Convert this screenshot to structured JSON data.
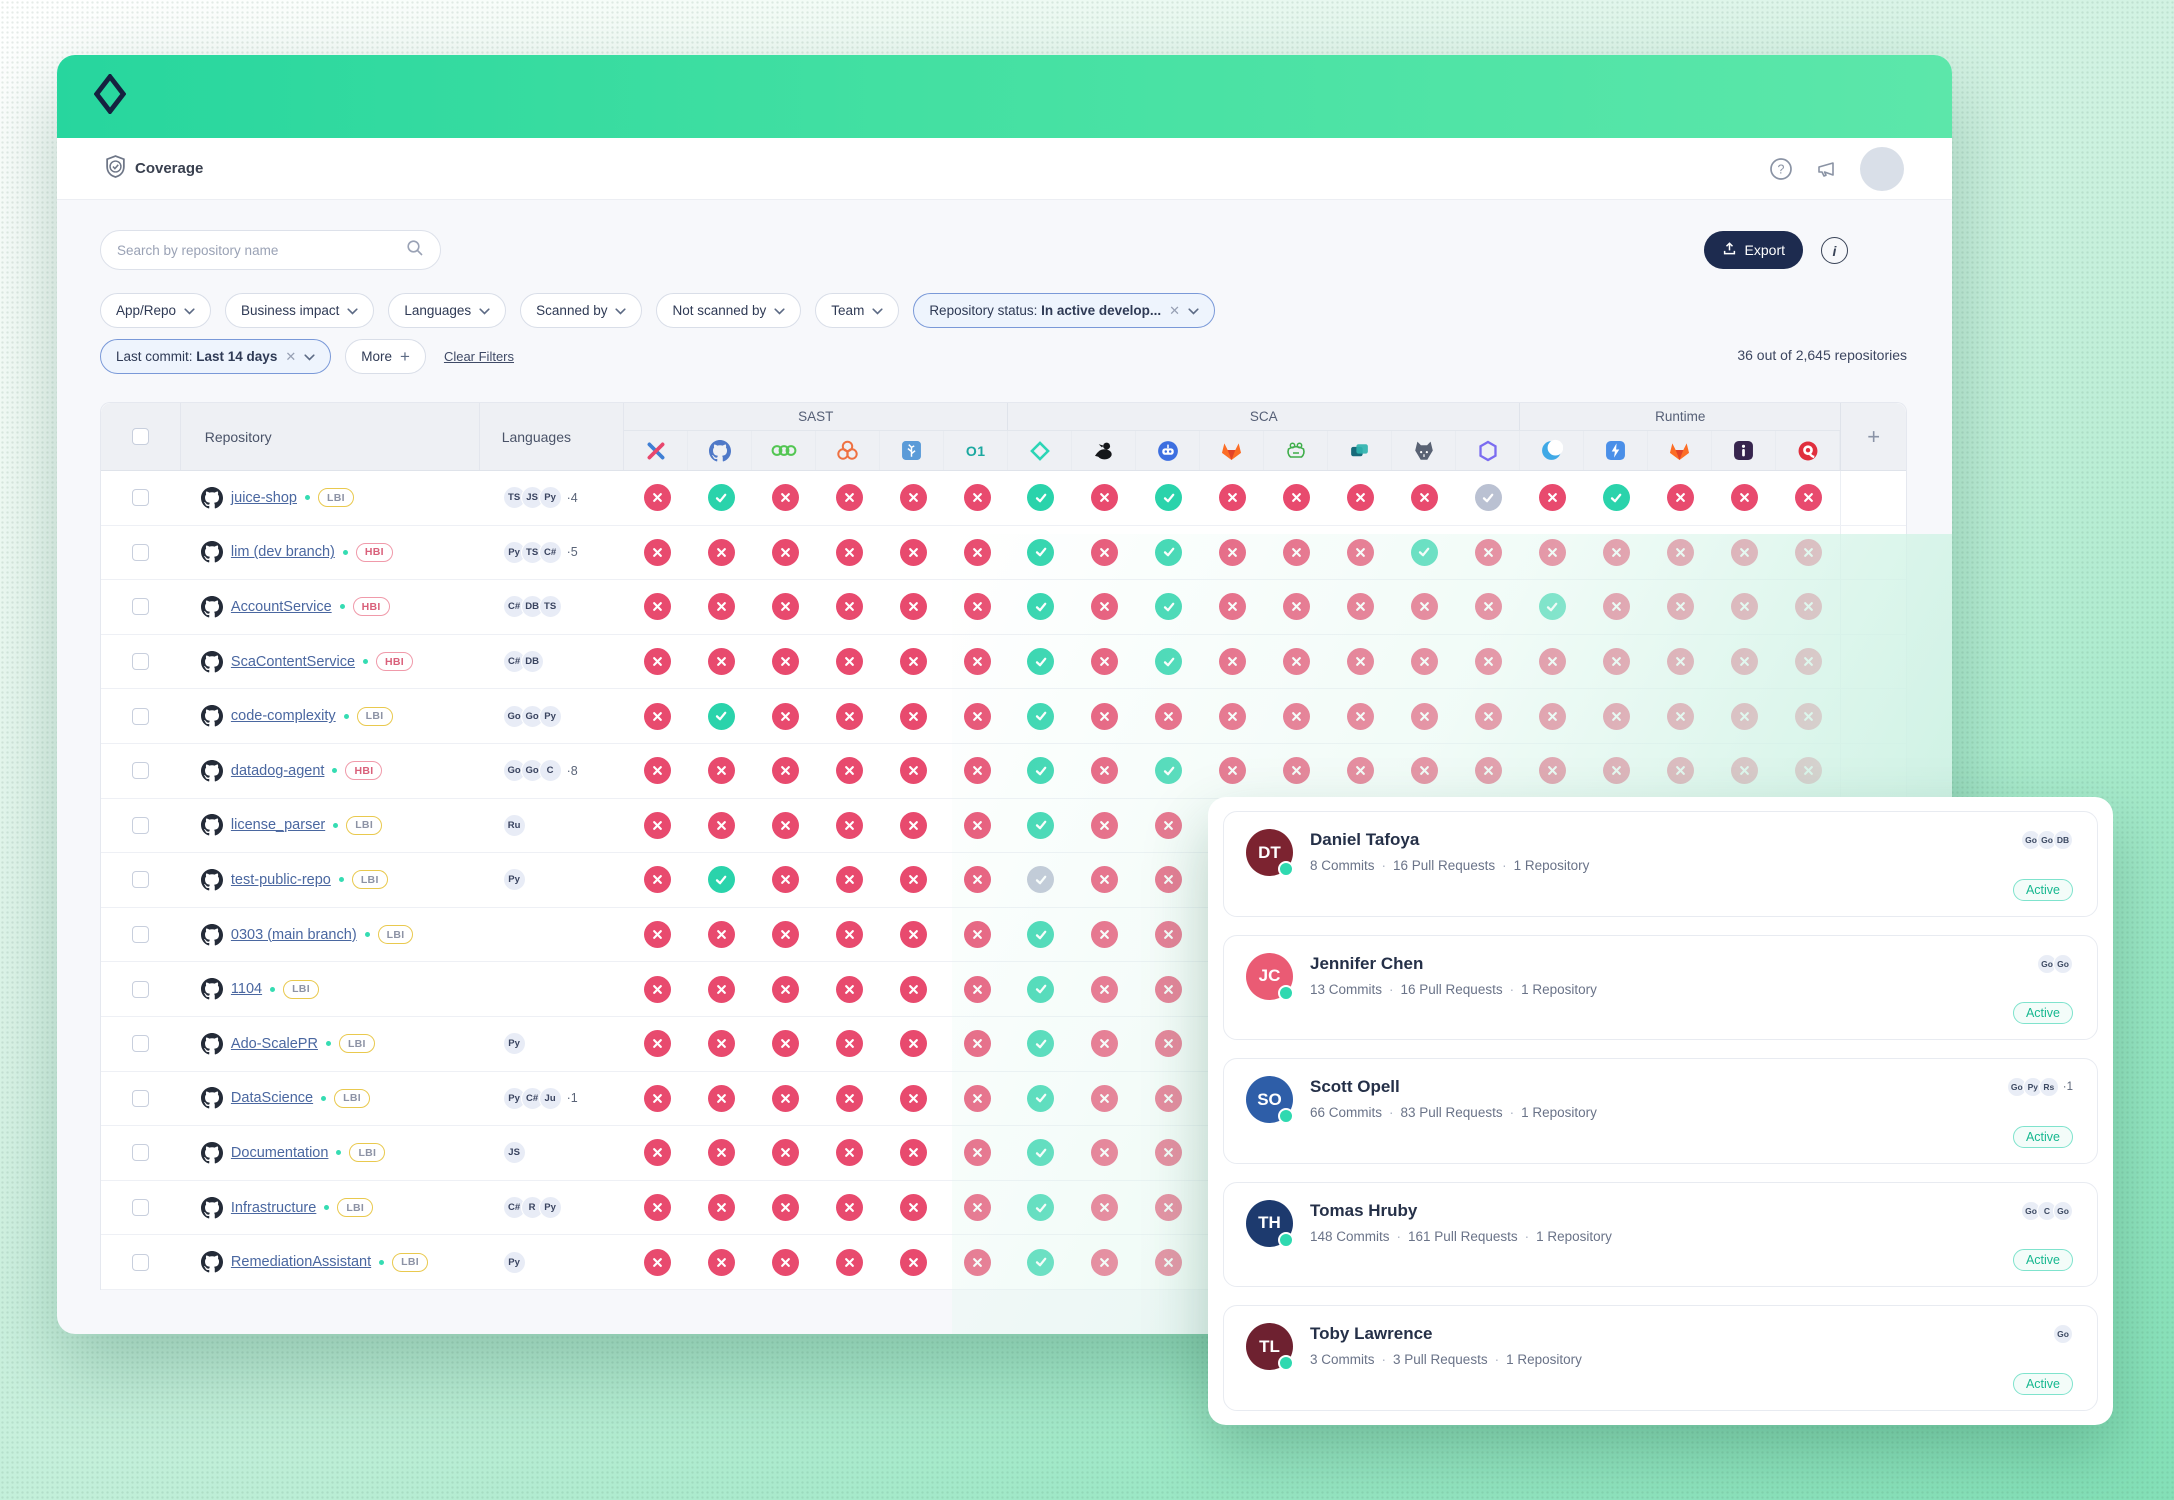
{
  "app": {
    "title": "Coverage"
  },
  "topbar": {
    "icons": [
      "help",
      "announcements",
      "avatar"
    ]
  },
  "toolbar": {
    "search_placeholder": "Search by repository name",
    "export_label": "Export"
  },
  "filters": {
    "dropdowns": [
      "App/Repo",
      "Business impact",
      "Languages",
      "Scanned by",
      "Not scanned by",
      "Team"
    ],
    "active": [
      {
        "prefix": "Repository status:",
        "value": "In active develop..."
      },
      {
        "prefix": "Last commit:",
        "value": "Last 14 days"
      }
    ],
    "more_label": "More",
    "clear_label": "Clear Filters",
    "result_count": "36 out of 2,645 repositories"
  },
  "table": {
    "columns": {
      "repository": "Repository",
      "languages": "Languages"
    },
    "groups": [
      {
        "label": "SAST",
        "tools": [
          "checkmarx-x",
          "github-security",
          "green-rings",
          "orange-clover",
          "blue-leaf",
          "o1"
        ]
      },
      {
        "label": "SCA",
        "tools": [
          "apiiro-diamond",
          "black-duck",
          "dependabot",
          "gitlab-fox",
          "jfrog-frog",
          "stacked-squares",
          "snyk-dog",
          "purple-hexagon"
        ]
      },
      {
        "label": "Runtime",
        "tools": [
          "blue-wave",
          "lightning-bolt",
          "gitlab-fox-2",
          "info-square",
          "qualys-q"
        ]
      }
    ],
    "rows": [
      {
        "name": "juice-shop",
        "badge": "LBI",
        "languages": [
          "TS",
          "JS",
          "Py"
        ],
        "lang_more": "·4",
        "statuses": "xvxxxxvxvxxxxgxvxxx"
      },
      {
        "name": "lim (dev branch)",
        "badge": "HBI",
        "languages": [
          "Py",
          "TS",
          "C#"
        ],
        "lang_more": "·5",
        "statuses": "xxxxxxvxvxxxvxxxxxx"
      },
      {
        "name": "AccountService",
        "badge": "HBI",
        "languages": [
          "C#",
          "DB",
          "TS"
        ],
        "lang_more": "",
        "statuses": "xxxxxxvxvxxxxxvxxxx"
      },
      {
        "name": "ScaContentService",
        "badge": "HBI",
        "languages": [
          "C#",
          "DB"
        ],
        "lang_more": "",
        "statuses": "xxxxxxvxvxxxxxxxxxx"
      },
      {
        "name": "code-complexity",
        "badge": "LBI",
        "languages": [
          "Go",
          "Go",
          "Py"
        ],
        "lang_more": "",
        "statuses": "xvxxxxvxxxxxxxxxxxx"
      },
      {
        "name": "datadog-agent",
        "badge": "HBI",
        "languages": [
          "Go",
          "Go",
          "C"
        ],
        "lang_more": "·8",
        "statuses": "xxxxxxvxvxxxxxxxxxx"
      },
      {
        "name": "license_parser",
        "badge": "LBI",
        "languages": [
          "Ru"
        ],
        "lang_more": "",
        "statuses": "xxxxxxvxxxxxxxxxxxx"
      },
      {
        "name": "test-public-repo",
        "badge": "LBI",
        "languages": [
          "Py"
        ],
        "lang_more": "",
        "statuses": "xvxxxxgxxxxxxxxxxxx"
      },
      {
        "name": "0303 (main branch)",
        "badge": "LBI",
        "languages": [],
        "lang_more": "",
        "statuses": "xxxxxxvxxxxxxxxxxxx"
      },
      {
        "name": "1104",
        "badge": "LBI",
        "languages": [],
        "lang_more": "",
        "statuses": "xxxxxxvxxxxxxxxxxxx"
      },
      {
        "name": "Ado-ScalePR",
        "badge": "LBI",
        "languages": [
          "Py"
        ],
        "lang_more": "",
        "statuses": "xxxxxxvxxxxxxxxxxxx"
      },
      {
        "name": "DataScience",
        "badge": "LBI",
        "languages": [
          "Py",
          "C#",
          "Ju"
        ],
        "lang_more": "·1",
        "statuses": "xxxxxxvxxxxxxxxxxxx"
      },
      {
        "name": "Documentation",
        "badge": "LBI",
        "languages": [
          "JS"
        ],
        "lang_more": "",
        "statuses": "xxxxxxvxxxxxxxxxxxx"
      },
      {
        "name": "Infrastructure",
        "badge": "LBI",
        "languages": [
          "C#",
          "R",
          "Py"
        ],
        "lang_more": "",
        "statuses": "xxxxxxvxxxxxxxxxxxx"
      },
      {
        "name": "RemediationAssistant",
        "badge": "LBI",
        "languages": [
          "Py"
        ],
        "lang_more": "",
        "statuses": "xxxxxxvxxxxxxxxxxxx"
      }
    ]
  },
  "contributors": [
    {
      "initials": "DT",
      "avatar_color": "#7c2330",
      "name": "Daniel Tafoya",
      "stats": [
        "8 Commits",
        "16 Pull Requests",
        "1 Repository"
      ],
      "languages": [
        "Go",
        "Go",
        "DB"
      ],
      "lang_more": "",
      "status": "Active"
    },
    {
      "initials": "JC",
      "avatar_color": "#ea5b74",
      "name": "Jennifer Chen",
      "stats": [
        "13 Commits",
        "16 Pull Requests",
        "1 Repository"
      ],
      "languages": [
        "Go",
        "Go"
      ],
      "lang_more": "",
      "status": "Active"
    },
    {
      "initials": "SO",
      "avatar_color": "#2e5ea8",
      "name": "Scott Opell",
      "stats": [
        "66 Commits",
        "83 Pull Requests",
        "1 Repository"
      ],
      "languages": [
        "Go",
        "Py",
        "Rs"
      ],
      "lang_more": "·1",
      "status": "Active"
    },
    {
      "initials": "TH",
      "avatar_color": "#1d3a6e",
      "name": "Tomas Hruby",
      "stats": [
        "148 Commits",
        "161 Pull Requests",
        "1 Repository"
      ],
      "languages": [
        "Go",
        "C",
        "Go"
      ],
      "lang_more": "",
      "status": "Active"
    },
    {
      "initials": "TL",
      "avatar_color": "#6e2130",
      "name": "Toby Lawrence",
      "stats": [
        "3 Commits",
        "3 Pull Requests",
        "1 Repository"
      ],
      "languages": [
        "Go"
      ],
      "lang_more": "",
      "status": "Active"
    }
  ],
  "colors": {
    "accent_teal": "#2ad3ab",
    "error_red": "#e84a6e",
    "neutral_gray": "#bac1d2",
    "brand_navy": "#1d2b4f",
    "header_green_start": "#27d69e",
    "header_green_end": "#5ce7aa"
  }
}
